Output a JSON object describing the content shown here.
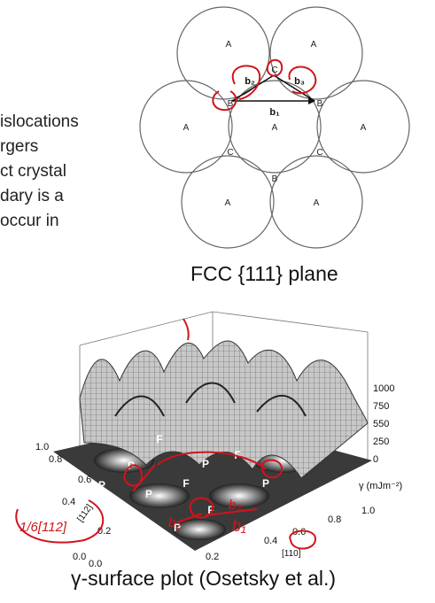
{
  "left_text_lines": [
    "islocations",
    "rgers",
    "ct crystal",
    "dary is a",
    "occur in"
  ],
  "fcc": {
    "site_labels": [
      "A",
      "A",
      "A",
      "A",
      "A",
      "A",
      "A",
      "B",
      "B",
      "B",
      "C",
      "C",
      "C"
    ],
    "vectors": [
      "b₂",
      "b₃",
      "b₁"
    ],
    "caption": "FCC {111} plane"
  },
  "gamma": {
    "z_ticks": [
      "1000",
      "750",
      "550",
      "250",
      "0"
    ],
    "z_label": "γ (mJm⁻²)",
    "x_ticks": [
      "0.0",
      "0.2",
      "0.4",
      "0.6",
      "0.8",
      "1.0"
    ],
    "y_ticks": [
      "0.0",
      "0.2",
      "0.4",
      "0.6",
      "0.8",
      "1.0"
    ],
    "x_axis_label": "[110]",
    "y_axis_label": "[112]",
    "map_labels": [
      "F",
      "P",
      "F",
      "P",
      "P",
      "F",
      "F",
      "P",
      "P",
      "P",
      "F",
      "P"
    ],
    "annotations": [
      "1/6[112]",
      "b₃",
      "b₂",
      "b₁"
    ],
    "caption": "γ-surface plot (Osetsky et al.)"
  }
}
